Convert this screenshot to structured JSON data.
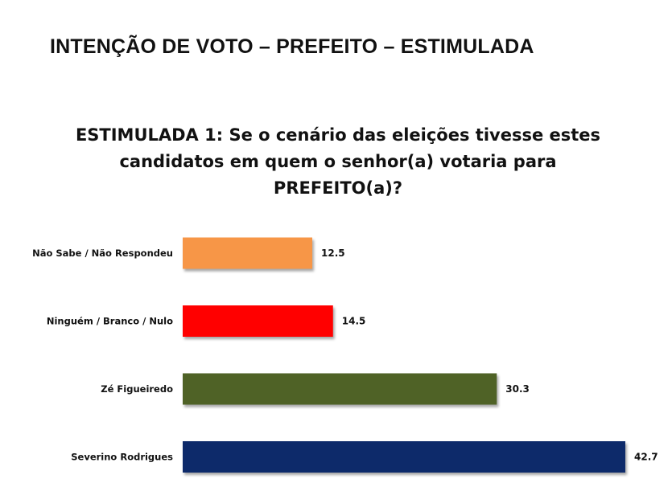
{
  "header": {
    "title": "INTENÇÃO DE VOTO – PREFEITO – ESTIMULADA"
  },
  "question": {
    "lines": [
      "ESTIMULADA 1: Se o cenário das eleições tivesse estes",
      "candidatos em quem o senhor(a) votaria para",
      "PREFEITO(a)?"
    ]
  },
  "chart_data": {
    "type": "bar",
    "orientation": "horizontal",
    "categories": [
      "Não Sabe / Não Respondeu",
      "Ninguém / Branco / Nulo",
      "Zé Figueiredo",
      "Severino Rodrigues"
    ],
    "values": [
      12.5,
      14.5,
      30.3,
      42.7
    ],
    "value_labels": [
      "12.5",
      "14.5",
      "30.3",
      "42.7"
    ],
    "colors": [
      "#F79646",
      "#FF0000",
      "#4F6228",
      "#0F2A6B"
    ],
    "xlim": [
      0,
      42.7
    ],
    "grid": false,
    "legend": "none",
    "axes_visible": false,
    "bar_shadow": true
  }
}
